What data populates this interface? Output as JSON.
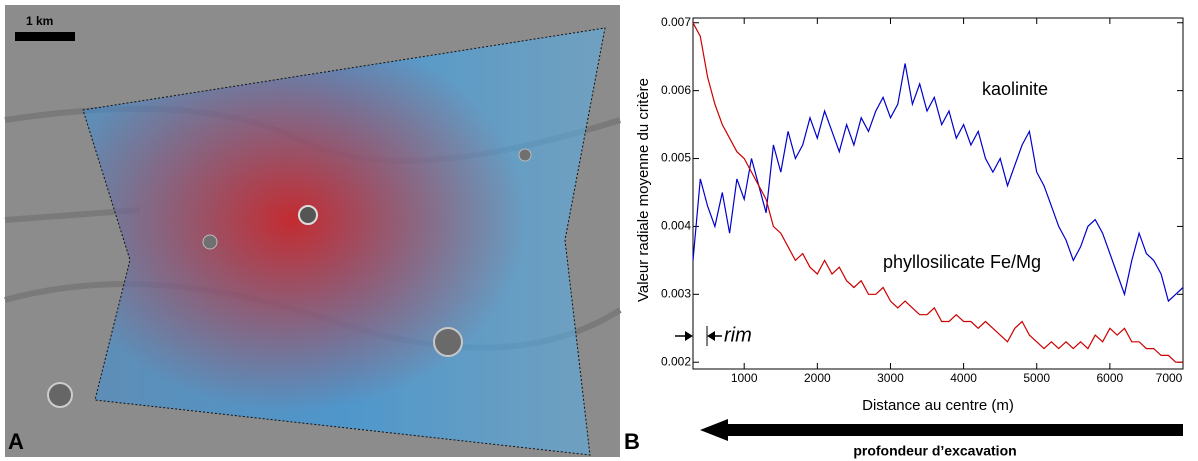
{
  "panel_a": {
    "label": "A",
    "scale_bar": "1 km"
  },
  "chart_data": {
    "type": "line",
    "panel_label": "B",
    "x_label": "Distance au centre (m)",
    "y_label": "Valeur radiale moyenne du critère",
    "rim_label": "rim",
    "arrow_label": "profondeur d’excavation",
    "xlim": [
      300,
      7000
    ],
    "ylim": [
      0.0019,
      0.00707
    ],
    "xticks": [
      1000,
      2000,
      3000,
      4000,
      5000,
      6000,
      7000
    ],
    "yticks": [
      0.002,
      0.003,
      0.004,
      0.005,
      0.006,
      0.007
    ],
    "x": [
      300,
      400,
      500,
      600,
      700,
      800,
      900,
      1000,
      1100,
      1200,
      1300,
      1400,
      1500,
      1600,
      1700,
      1800,
      1900,
      2000,
      2100,
      2200,
      2300,
      2400,
      2500,
      2600,
      2700,
      2800,
      2900,
      3000,
      3100,
      3200,
      3300,
      3400,
      3500,
      3600,
      3700,
      3800,
      3900,
      4000,
      4100,
      4200,
      4300,
      4400,
      4500,
      4600,
      4700,
      4800,
      4900,
      5000,
      5100,
      5200,
      5300,
      5400,
      5500,
      5600,
      5700,
      5800,
      5900,
      6000,
      6100,
      6200,
      6300,
      6400,
      6500,
      6600,
      6700,
      6800,
      6900,
      7000
    ],
    "series": [
      {
        "name": "kaolinite",
        "color": "#0000cc",
        "values": [
          0.0035,
          0.0047,
          0.0043,
          0.004,
          0.0045,
          0.0039,
          0.0047,
          0.0044,
          0.005,
          0.0046,
          0.0042,
          0.0052,
          0.0048,
          0.0054,
          0.005,
          0.0052,
          0.0056,
          0.0053,
          0.0057,
          0.0054,
          0.0051,
          0.0055,
          0.0052,
          0.0056,
          0.0054,
          0.0057,
          0.0059,
          0.0056,
          0.0058,
          0.0064,
          0.0058,
          0.0061,
          0.0057,
          0.0059,
          0.0055,
          0.0057,
          0.0053,
          0.0055,
          0.0052,
          0.0054,
          0.005,
          0.0048,
          0.005,
          0.0046,
          0.0049,
          0.0052,
          0.0054,
          0.0048,
          0.0046,
          0.0043,
          0.004,
          0.0038,
          0.0035,
          0.0037,
          0.004,
          0.0041,
          0.0039,
          0.0036,
          0.0033,
          0.003,
          0.0035,
          0.0039,
          0.0036,
          0.0035,
          0.0033,
          0.0029,
          0.003,
          0.0031
        ]
      },
      {
        "name": "phyllosilicate Fe/Mg",
        "color": "#cc0000",
        "values": [
          0.007,
          0.0068,
          0.0062,
          0.0058,
          0.0055,
          0.0053,
          0.0051,
          0.005,
          0.0048,
          0.0046,
          0.0044,
          0.004,
          0.0039,
          0.0037,
          0.0035,
          0.0036,
          0.0034,
          0.0033,
          0.0035,
          0.0033,
          0.0034,
          0.0032,
          0.0031,
          0.0032,
          0.003,
          0.003,
          0.0031,
          0.0029,
          0.0028,
          0.0029,
          0.0028,
          0.0027,
          0.0027,
          0.0028,
          0.0026,
          0.0026,
          0.0027,
          0.0026,
          0.0026,
          0.0025,
          0.0026,
          0.0025,
          0.0024,
          0.0023,
          0.0025,
          0.0026,
          0.0024,
          0.0023,
          0.0022,
          0.0023,
          0.0022,
          0.0023,
          0.0022,
          0.0023,
          0.0022,
          0.0024,
          0.0023,
          0.0025,
          0.0024,
          0.0025,
          0.0023,
          0.0023,
          0.0022,
          0.0022,
          0.0021,
          0.0021,
          0.002,
          0.002
        ]
      }
    ]
  }
}
